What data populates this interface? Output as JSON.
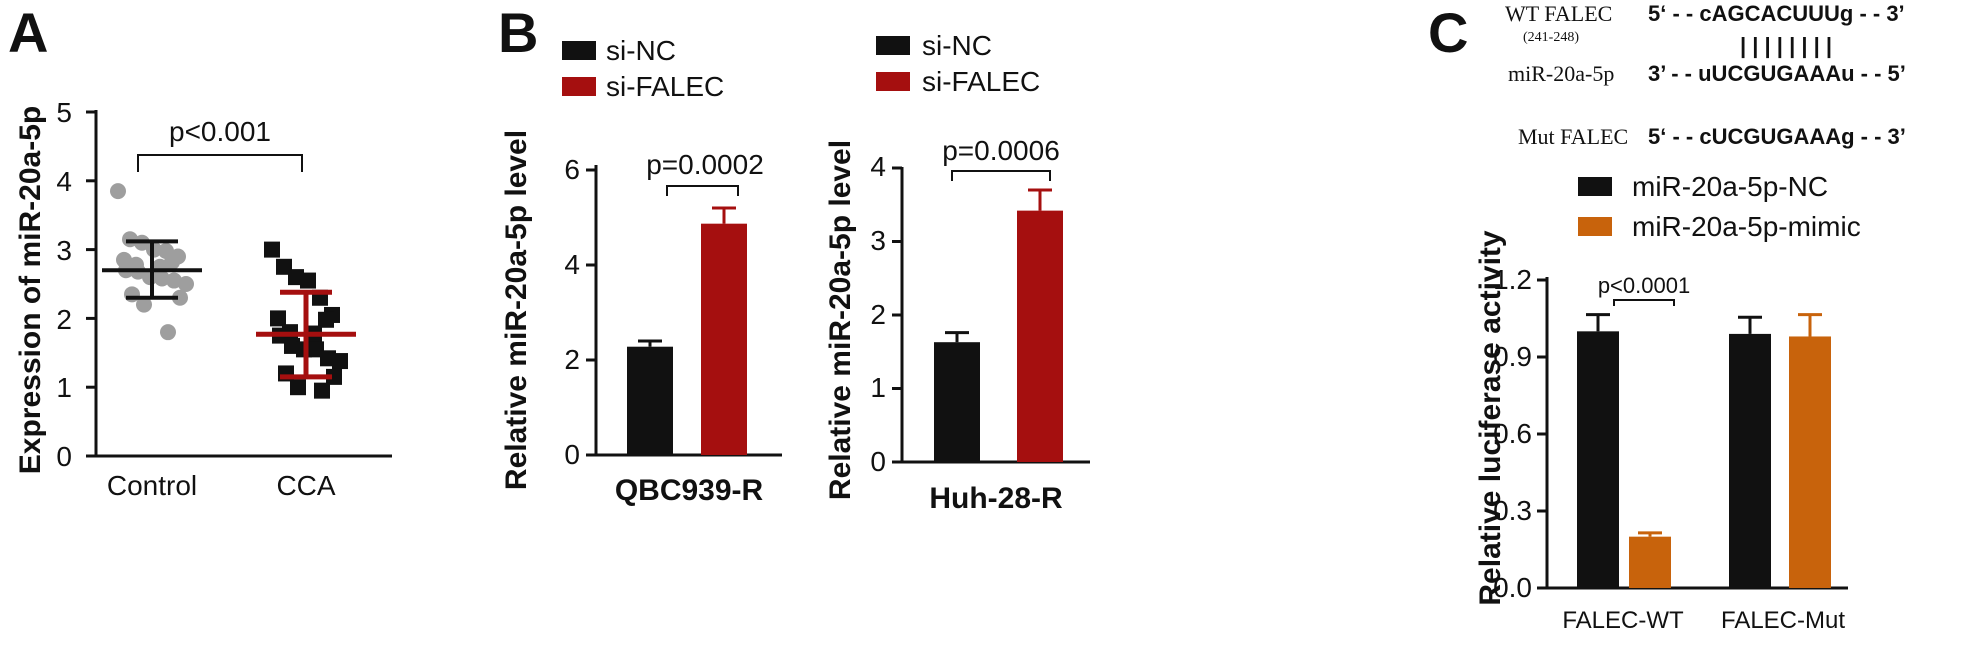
{
  "colors": {
    "black": "#111111",
    "grey_point": "#9e9e9e",
    "red": "#a50f0f",
    "dark_red_errbar": "#a50f0f",
    "orange": "#c8630c"
  },
  "panels": {
    "A": {
      "letter": "A",
      "ylabel": "Expression of miR-20a-5p",
      "yticks": [
        "0",
        "1",
        "2",
        "3",
        "4",
        "5"
      ],
      "categories": [
        "Control",
        "CCA"
      ],
      "pvalue": "p<0.001"
    },
    "B": {
      "letter": "B",
      "legend": [
        "si-NC",
        "si-FALEC"
      ],
      "left": {
        "ylabel": "Relative miR-20a-5p level",
        "yticks": [
          "0",
          "2",
          "4",
          "6"
        ],
        "xlabel": "QBC939-R",
        "pvalue": "p=0.0002"
      },
      "right": {
        "ylabel": "Relative miR-20a-5p level",
        "yticks": [
          "0",
          "1",
          "2",
          "3",
          "4"
        ],
        "xlabel": "Huh-28-R",
        "pvalue": "p=0.0006"
      }
    },
    "C": {
      "letter": "C",
      "seq": {
        "wt_name": "WT FALEC",
        "wt_sub": "(241-248)",
        "wt_seq": "5‘ - - cAGCACUUUg - - 3’",
        "pairing": "| | | | | | | |",
        "mir_name": "miR-20a-5p",
        "mir_seq": "3’ - - uUCGUGAAAu - - 5’",
        "mut_name": "Mut FALEC",
        "mut_seq": "5‘ - - cUCGUGAAAg - - 3’"
      },
      "legend": [
        "miR-20a-5p-NC",
        "miR-20a-5p-mimic"
      ],
      "ylabel": "Relative luciferase activity",
      "yticks": [
        "0.0",
        "0.3",
        "0.6",
        "0.9",
        "1.2"
      ],
      "categories": [
        "FALEC-WT",
        "FALEC-Mut"
      ],
      "pvalue": "p<0.0001"
    }
  },
  "chart_data": [
    {
      "type": "scatter",
      "panel": "A",
      "ylabel": "Expression of miR-20a-5p",
      "ylim": [
        0,
        5
      ],
      "categories": [
        "Control",
        "CCA"
      ],
      "series": [
        {
          "name": "Control",
          "values": [
            3.85,
            3.15,
            3.1,
            3.0,
            2.98,
            2.9,
            2.85,
            2.82,
            2.78,
            2.75,
            2.7,
            2.68,
            2.6,
            2.58,
            2.55,
            2.5,
            2.35,
            2.3,
            2.2,
            1.8
          ],
          "mean": 2.7,
          "sd_low": 2.3,
          "sd_high": 3.12
        },
        {
          "name": "CCA",
          "values": [
            3.0,
            2.75,
            2.6,
            2.55,
            2.3,
            2.05,
            2.0,
            1.98,
            1.8,
            1.78,
            1.75,
            1.6,
            1.55,
            1.55,
            1.42,
            1.38,
            1.2,
            1.15,
            1.0,
            0.95
          ],
          "mean": 1.77,
          "sd_low": 1.15,
          "sd_high": 2.38
        }
      ],
      "annotation": "p<0.001"
    },
    {
      "type": "bar",
      "panel": "B-left",
      "categories": [
        "QBC939-R"
      ],
      "series": [
        {
          "name": "si-NC",
          "values": [
            2.28
          ],
          "error": [
            0.12
          ]
        },
        {
          "name": "si-FALEC",
          "values": [
            4.87
          ],
          "error": [
            0.33
          ]
        }
      ],
      "xlabel": "QBC939-R",
      "ylabel": "Relative miR-20a-5p level",
      "ylim": [
        0,
        6
      ],
      "annotation": "p=0.0002"
    },
    {
      "type": "bar",
      "panel": "B-right",
      "categories": [
        "Huh-28-R"
      ],
      "series": [
        {
          "name": "si-NC",
          "values": [
            1.63
          ],
          "error": [
            0.13
          ]
        },
        {
          "name": "si-FALEC",
          "values": [
            3.42
          ],
          "error": [
            0.28
          ]
        }
      ],
      "xlabel": "Huh-28-R",
      "ylabel": "Relative miR-20a-5p level",
      "ylim": [
        0,
        4
      ],
      "annotation": "p=0.0006"
    },
    {
      "type": "bar",
      "panel": "C",
      "categories": [
        "FALEC-WT",
        "FALEC-Mut"
      ],
      "series": [
        {
          "name": "miR-20a-5p-NC",
          "values": [
            1.0,
            0.99
          ],
          "error": [
            0.065,
            0.065
          ]
        },
        {
          "name": "miR-20a-5p-mimic",
          "values": [
            0.2,
            0.98
          ],
          "error": [
            0.015,
            0.085
          ]
        }
      ],
      "ylabel": "Relative luciferase activity",
      "ylim": [
        0,
        1.2
      ],
      "annotation": "p<0.0001"
    }
  ]
}
